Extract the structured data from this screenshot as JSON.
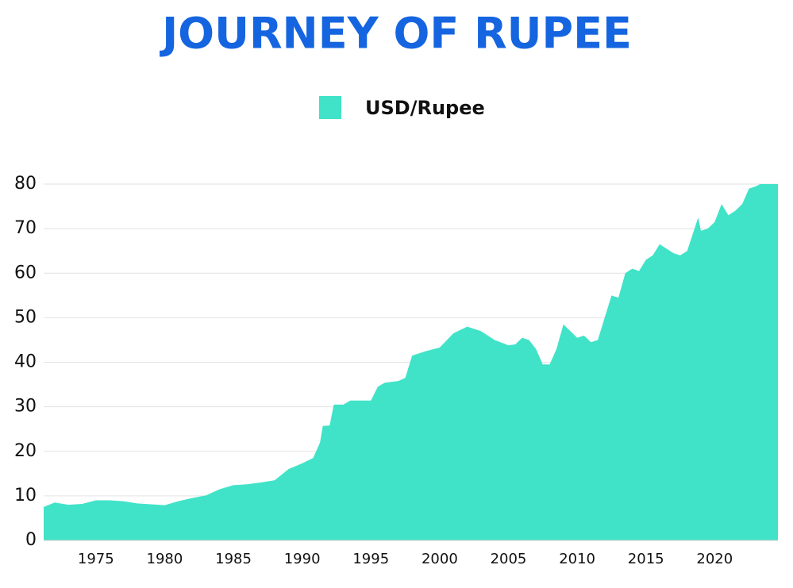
{
  "chart_data": {
    "type": "area",
    "title": "JOURNEY OF RUPEE",
    "x": [
      1971.2,
      1972,
      1973,
      1974,
      1975,
      1976,
      1977,
      1978,
      1979,
      1980,
      1981,
      1982,
      1983,
      1984,
      1985,
      1986,
      1987,
      1988,
      1989,
      1990,
      1990.8,
      1991.3,
      1991.5,
      1992,
      1992.3,
      1993,
      1993.5,
      1995,
      1995.5,
      1996,
      1997,
      1997.5,
      1998,
      1999,
      2000,
      2001,
      2002,
      2003,
      2004,
      2005,
      2005.5,
      2006,
      2006.5,
      2007,
      2007.5,
      2008,
      2008.5,
      2009,
      2009.5,
      2010,
      2010.5,
      2011,
      2011.5,
      2012,
      2012.5,
      2013,
      2013.5,
      2014,
      2014.5,
      2015,
      2015.5,
      2016,
      2017,
      2017.5,
      2018,
      2018.8,
      2019,
      2019.5,
      2020,
      2020.5,
      2021,
      2021.5,
      2022,
      2022.5,
      2023,
      2023.3,
      2024.6
    ],
    "series": [
      {
        "name": "USD/Rupee",
        "color": "#40e3c8",
        "values": [
          7.5,
          8.5,
          8.0,
          8.2,
          9.0,
          9.0,
          8.8,
          8.3,
          8.1,
          7.9,
          8.8,
          9.5,
          10.1,
          11.5,
          12.4,
          12.6,
          13.0,
          13.5,
          16.0,
          17.3,
          18.5,
          22,
          25.7,
          25.8,
          30.5,
          30.5,
          31.4,
          31.4,
          34.5,
          35.4,
          35.8,
          36.5,
          41.5,
          42.5,
          43.3,
          46.5,
          48.0,
          47.0,
          45.0,
          43.8,
          44.0,
          45.5,
          45.0,
          43.0,
          39.5,
          39.5,
          43,
          48.5,
          47,
          45.5,
          46,
          44.5,
          45,
          50,
          55,
          54.5,
          60,
          61,
          60.5,
          63,
          64,
          66.5,
          64.5,
          64,
          65,
          72.5,
          69.5,
          70,
          71.5,
          75.5,
          73,
          74,
          75.5,
          79,
          79.5,
          80,
          80
        ]
      }
    ],
    "xlim": [
      1971.2,
      2024.6
    ],
    "xticks": [
      1975,
      1980,
      1985,
      1990,
      1995,
      2000,
      2005,
      2010,
      2015,
      2020
    ],
    "ylim": [
      0,
      80
    ],
    "yticks": [
      0,
      10,
      20,
      30,
      40,
      50,
      60,
      70,
      80
    ],
    "grid": true
  }
}
